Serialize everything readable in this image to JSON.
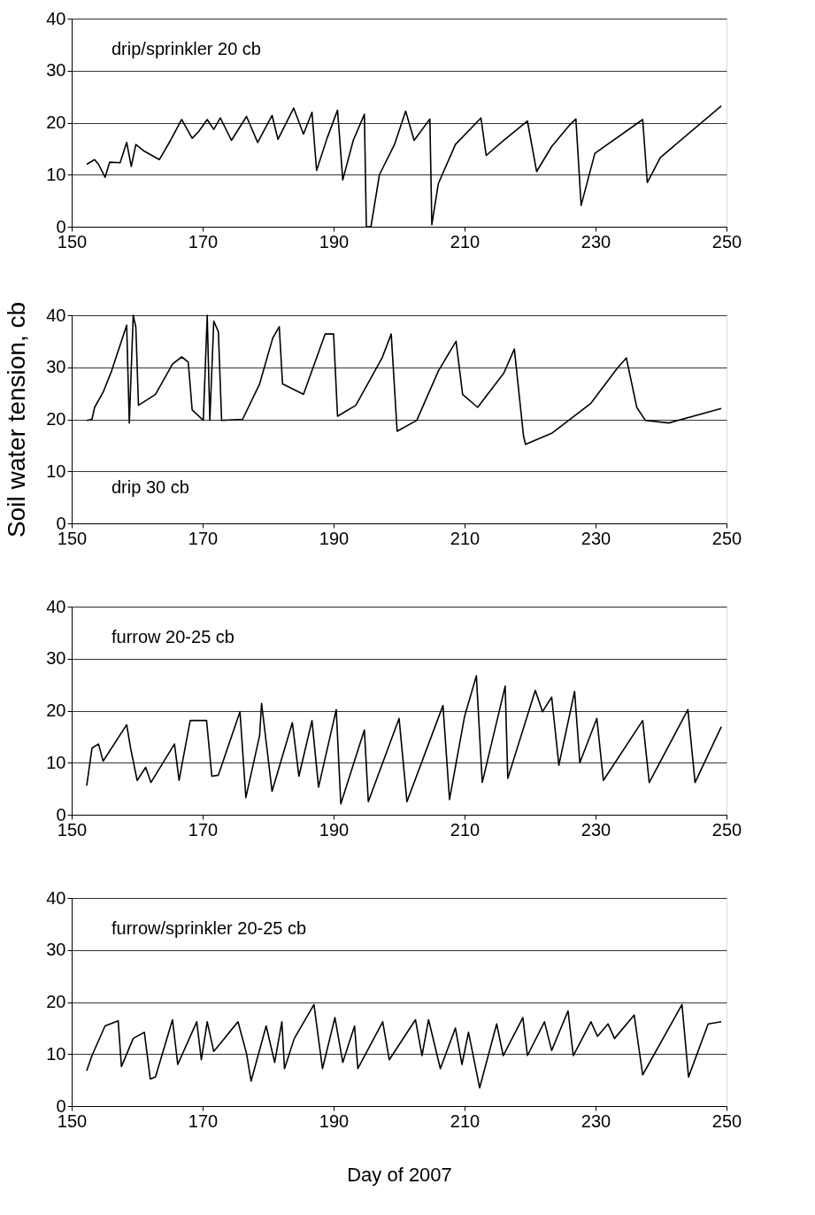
{
  "chart_data": [
    {
      "type": "line",
      "xlim": [
        150,
        250
      ],
      "xticks": [
        150,
        170,
        190,
        210,
        230,
        250
      ],
      "ylim": [
        0,
        40
      ],
      "yticks": [
        0,
        10,
        20,
        30,
        40
      ],
      "grid": "y",
      "annotations": [
        "drip/sprinkler 20 cb"
      ],
      "series": [
        {
          "color": "#000000",
          "x": [
            152.3,
            153.5,
            154.1,
            155.1,
            155.8,
            157.4,
            158.4,
            159.1,
            159.8,
            161.1,
            163.4,
            165.1,
            166.8,
            168.4,
            169.4,
            170.7,
            171.7,
            172.7,
            174.4,
            176.7,
            178.4,
            180.6,
            181.5,
            183.9,
            185.4,
            186.7,
            187.4,
            189.0,
            190.6,
            191.4,
            193.0,
            194.7,
            195.0,
            195.7,
            197.0,
            199.3,
            201.0,
            202.3,
            204.7,
            205.0,
            206.0,
            208.6,
            212.5,
            213.3,
            216.0,
            219.6,
            221.0,
            223.3,
            226.0,
            227.0,
            227.8,
            229.9,
            237.2,
            237.9,
            239.9,
            249.2
          ],
          "values": [
            12.0,
            12.9,
            12.0,
            9.5,
            12.4,
            12.3,
            16.2,
            11.6,
            15.8,
            14.5,
            12.9,
            16.6,
            20.6,
            17.0,
            18.3,
            20.6,
            18.7,
            20.9,
            16.6,
            21.2,
            16.2,
            21.4,
            16.8,
            22.8,
            17.8,
            22.0,
            10.8,
            17.0,
            22.4,
            9.0,
            16.6,
            21.6,
            0,
            0,
            10.0,
            15.8,
            22.2,
            16.6,
            20.7,
            0.4,
            8.3,
            15.8,
            20.9,
            13.7,
            16.6,
            20.3,
            10.6,
            15.4,
            19.5,
            20.7,
            4.1,
            14.1,
            20.6,
            8.5,
            13.3,
            23.2
          ]
        }
      ]
    },
    {
      "type": "line",
      "xlim": [
        150,
        250
      ],
      "xticks": [
        150,
        170,
        190,
        210,
        230,
        250
      ],
      "ylim": [
        0,
        40
      ],
      "yticks": [
        0,
        10,
        20,
        30,
        40
      ],
      "grid": "y",
      "annotations": [
        "drip 30 cb"
      ],
      "ylabel": "Soil water tension, cb",
      "series": [
        {
          "color": "#000000",
          "x": [
            152.3,
            153.1,
            153.5,
            154.8,
            156.1,
            158.4,
            158.8,
            159.4,
            159.8,
            160.2,
            162.8,
            165.4,
            166.8,
            167.8,
            168.4,
            170.1,
            170.7,
            171.1,
            171.7,
            172.4,
            172.9,
            176.1,
            178.7,
            180.7,
            181.7,
            182.2,
            185.4,
            188.7,
            190.0,
            190.6,
            193.4,
            197.4,
            198.8,
            199.7,
            202.7,
            206.0,
            208.7,
            209.7,
            212.0,
            216.0,
            217.6,
            219.0,
            219.3,
            223.3,
            229.3,
            233.3,
            234.7,
            236.3,
            237.6,
            241.2,
            249.2
          ],
          "values": [
            19.8,
            20,
            22.3,
            25.2,
            29.3,
            38.1,
            19.3,
            40,
            37.7,
            22.7,
            24.8,
            30.6,
            32,
            31,
            21.8,
            19.8,
            40,
            19.8,
            38.9,
            36.8,
            19.8,
            20,
            26.8,
            35.6,
            37.8,
            26.8,
            24.8,
            36.4,
            36.4,
            20.6,
            22.7,
            31.8,
            36.4,
            17.7,
            19.8,
            29.3,
            35,
            24.8,
            22.3,
            28.9,
            33.5,
            16.8,
            15.2,
            17.3,
            23.1,
            29.8,
            31.8,
            22.3,
            19.8,
            19.3,
            22.1
          ]
        }
      ]
    },
    {
      "type": "line",
      "xlim": [
        150,
        250
      ],
      "xticks": [
        150,
        170,
        190,
        210,
        230,
        250
      ],
      "ylim": [
        0,
        40
      ],
      "yticks": [
        0,
        10,
        20,
        30,
        40
      ],
      "grid": "y",
      "annotations": [
        "furrow 20-25 cb"
      ],
      "series": [
        {
          "color": "#000000",
          "x": [
            152.3,
            153.1,
            154.1,
            154.8,
            158.4,
            159.0,
            160.0,
            161.3,
            162.1,
            165.7,
            166.4,
            168.1,
            170.6,
            171.4,
            172.4,
            175.7,
            176.6,
            178.7,
            179.0,
            180.6,
            183.7,
            184.7,
            186.7,
            187.7,
            190.4,
            191.1,
            194.7,
            195.3,
            200.0,
            201.2,
            206.7,
            207.7,
            210.0,
            211.8,
            212.7,
            216.2,
            216.6,
            220.8,
            221.9,
            223.3,
            224.4,
            226.8,
            227.6,
            230.2,
            231.2,
            237.2,
            238.2,
            244.1,
            245.2,
            249.2
          ],
          "values": [
            5.6,
            12.8,
            13.6,
            10.3,
            17.3,
            12.8,
            6.6,
            9.1,
            6.2,
            13.6,
            6.6,
            18.1,
            18.1,
            7.4,
            7.6,
            19.8,
            3.3,
            15.2,
            21.4,
            4.5,
            17.7,
            7.4,
            18.1,
            5.3,
            20.2,
            2.1,
            16.3,
            2.5,
            18.5,
            2.5,
            21.0,
            2.9,
            18.9,
            26.7,
            6.2,
            24.7,
            7.0,
            23.9,
            19.8,
            22.6,
            9.5,
            23.7,
            10.0,
            18.5,
            6.6,
            18.1,
            6.2,
            20.2,
            6.2,
            16.9
          ]
        }
      ]
    },
    {
      "type": "line",
      "xlim": [
        150,
        250
      ],
      "xticks": [
        150,
        170,
        190,
        210,
        230,
        250
      ],
      "ylim": [
        0,
        40
      ],
      "yticks": [
        0,
        10,
        20,
        30,
        40
      ],
      "grid": "y",
      "annotations": [
        "furrow/sprinkler 20-25 cb"
      ],
      "xlabel": "Day of 2007",
      "series": [
        {
          "color": "#000000",
          "x": [
            152.3,
            153.1,
            155.1,
            157.1,
            157.6,
            159.4,
            161.1,
            162.0,
            162.8,
            165.4,
            166.2,
            169.1,
            169.8,
            170.7,
            171.7,
            175.4,
            176.7,
            177.4,
            179.7,
            181.0,
            182.1,
            182.5,
            184.0,
            187.0,
            188.3,
            190.2,
            191.4,
            193.2,
            193.7,
            197.5,
            198.5,
            202.5,
            203.5,
            204.5,
            206.3,
            208.6,
            209.6,
            210.6,
            212.3,
            214.9,
            215.9,
            218.9,
            219.6,
            222.2,
            223.3,
            225.8,
            226.6,
            229.3,
            230.3,
            231.9,
            232.9,
            235.9,
            237.2,
            243.2,
            244.2,
            247.2,
            249.2
          ],
          "values": [
            6.8,
            9.7,
            15.4,
            16.4,
            7.6,
            13,
            14.2,
            5.2,
            5.6,
            16.6,
            8.0,
            16.2,
            8.9,
            16.2,
            10.5,
            16.2,
            10.1,
            4.8,
            15.4,
            8.4,
            16.2,
            7.2,
            13,
            19.5,
            7.2,
            17,
            8.4,
            15.4,
            7.2,
            16.2,
            8.9,
            16.6,
            9.7,
            16.6,
            7.2,
            15.0,
            8.0,
            14.2,
            3.5,
            15.8,
            9.7,
            17.0,
            9.7,
            16.2,
            10.7,
            18.3,
            9.7,
            16.2,
            13.4,
            15.8,
            13.0,
            17.5,
            6.0,
            19.5,
            5.6,
            15.8,
            16.2
          ]
        }
      ]
    }
  ]
}
